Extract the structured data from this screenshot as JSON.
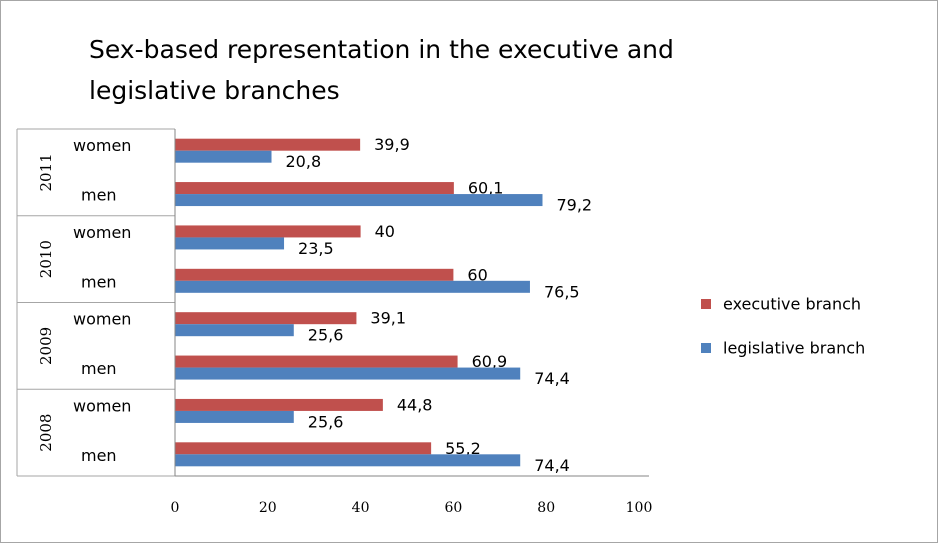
{
  "chart_data": {
    "type": "bar",
    "orientation": "horizontal",
    "title": "Sex-based representation in the executive and legislative branches",
    "xlim": [
      0,
      100
    ],
    "x_ticks": [
      "0",
      "20",
      "40",
      "60",
      "80",
      "100"
    ],
    "groups": [
      {
        "year": "2011",
        "rows": [
          {
            "label": "women",
            "executive": 39.9,
            "executive_label": "39,9",
            "legislative": 20.8,
            "legislative_label": "20,8"
          },
          {
            "label": "men",
            "executive": 60.1,
            "executive_label": "60,1",
            "legislative": 79.2,
            "legislative_label": "79,2"
          }
        ]
      },
      {
        "year": "2010",
        "rows": [
          {
            "label": "women",
            "executive": 40,
            "executive_label": "40",
            "legislative": 23.5,
            "legislative_label": "23,5"
          },
          {
            "label": "men",
            "executive": 60,
            "executive_label": "60",
            "legislative": 76.5,
            "legislative_label": "76,5"
          }
        ]
      },
      {
        "year": "2009",
        "rows": [
          {
            "label": "women",
            "executive": 39.1,
            "executive_label": "39,1",
            "legislative": 25.6,
            "legislative_label": "25,6"
          },
          {
            "label": "men",
            "executive": 60.9,
            "executive_label": "60,9",
            "legislative": 74.4,
            "legislative_label": "74,4"
          }
        ]
      },
      {
        "year": "2008",
        "rows": [
          {
            "label": "women",
            "executive": 44.8,
            "executive_label": "44,8",
            "legislative": 25.6,
            "legislative_label": "25,6"
          },
          {
            "label": "men",
            "executive": 55.2,
            "executive_label": "55,2",
            "legislative": 74.4,
            "legislative_label": "74,4"
          }
        ]
      }
    ],
    "series": [
      {
        "name": "executive branch",
        "key": "executive",
        "color": "#c0504d"
      },
      {
        "name": "legislative branch",
        "key": "legislative",
        "color": "#4f81bd"
      }
    ],
    "legend": "right"
  }
}
